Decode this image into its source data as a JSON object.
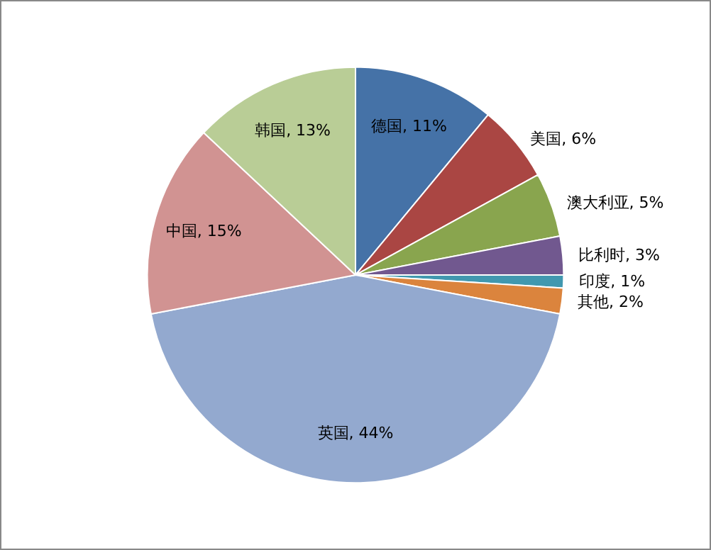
{
  "chart_data": {
    "type": "pie",
    "categories": [
      "德国",
      "美国",
      "澳大利亚",
      "比利时",
      "印度",
      "其他",
      "英国",
      "中国",
      "韩国"
    ],
    "values": [
      11,
      6,
      5,
      3,
      1,
      2,
      44,
      15,
      13
    ],
    "value_labels": [
      "11%",
      "6%",
      "5%",
      "3%",
      "1%",
      "2%",
      "44%",
      "15%",
      "13%"
    ],
    "colors": [
      "#4572a7",
      "#aa4643",
      "#89a54e",
      "#71588f",
      "#4198af",
      "#db843d",
      "#93a9cf",
      "#d19392",
      "#b9cd96"
    ],
    "legend": false
  }
}
